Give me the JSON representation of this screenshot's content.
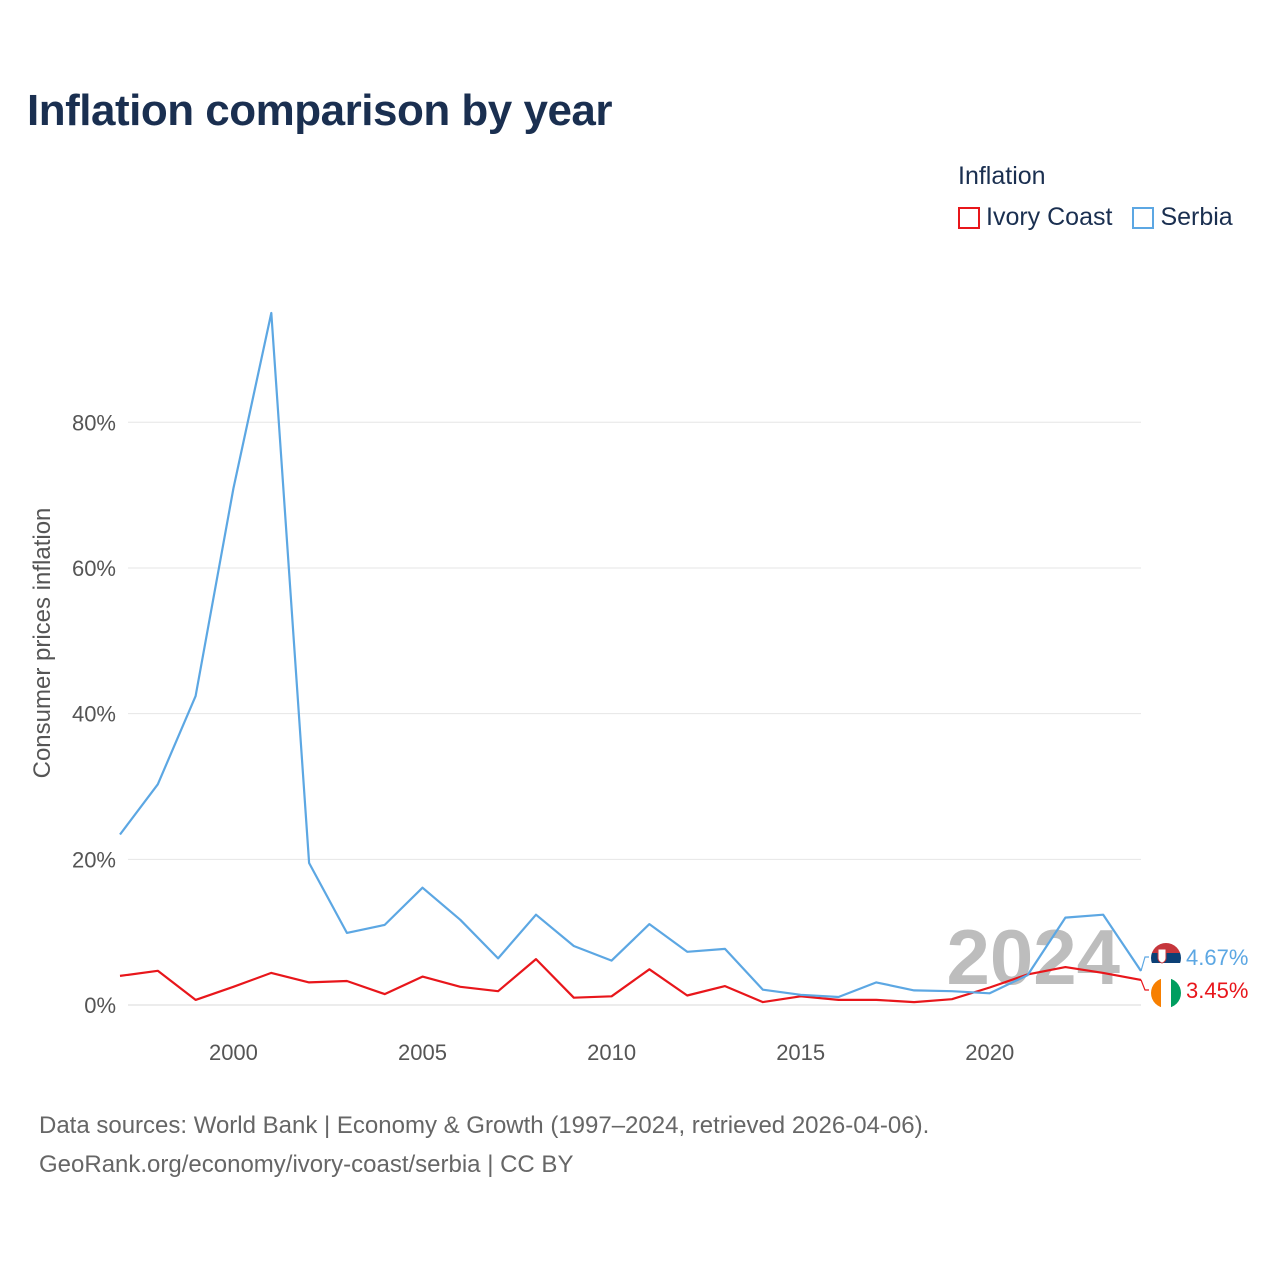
{
  "chart_data": {
    "type": "line",
    "title": "Inflation comparison by year",
    "ylabel": "Consumer prices inflation",
    "xlabel": "",
    "legend_title": "Inflation",
    "legend_position": "top-right",
    "x": [
      1997,
      1998,
      1999,
      2000,
      2001,
      2002,
      2003,
      2004,
      2005,
      2006,
      2007,
      2008,
      2009,
      2010,
      2011,
      2012,
      2013,
      2014,
      2015,
      2016,
      2017,
      2018,
      2019,
      2020,
      2021,
      2022,
      2023,
      2024
    ],
    "xlim": [
      1997,
      2024
    ],
    "ylim": [
      0,
      95
    ],
    "x_ticks": [
      2000,
      2005,
      2010,
      2015,
      2020
    ],
    "x_tick_labels": [
      "2000",
      "2005",
      "2010",
      "2015",
      "2020"
    ],
    "y_ticks": [
      0,
      20,
      40,
      60,
      80
    ],
    "y_tick_labels": [
      "0%",
      "20%",
      "40%",
      "60%",
      "80%"
    ],
    "grid": true,
    "current_year_label": "2024",
    "series": [
      {
        "name": "Ivory Coast",
        "color": "#e8161b",
        "flag": "ivory-coast-flag",
        "end_label": "3.45%",
        "values": [
          4.0,
          4.7,
          0.7,
          2.5,
          4.4,
          3.1,
          3.3,
          1.5,
          3.9,
          2.5,
          1.9,
          6.3,
          1.0,
          1.2,
          4.9,
          1.3,
          2.6,
          0.4,
          1.2,
          0.7,
          0.7,
          0.4,
          0.8,
          2.4,
          4.2,
          5.2,
          4.4,
          3.45
        ]
      },
      {
        "name": "Serbia",
        "color": "#5ca7e3",
        "flag": "serbia-flag",
        "end_label": "4.67%",
        "values": [
          23.4,
          30.3,
          42.4,
          70.9,
          95.0,
          19.5,
          9.9,
          11.0,
          16.1,
          11.7,
          6.4,
          12.4,
          8.1,
          6.1,
          11.1,
          7.3,
          7.7,
          2.1,
          1.4,
          1.1,
          3.1,
          2.0,
          1.9,
          1.6,
          4.1,
          12.0,
          12.4,
          4.67
        ]
      }
    ]
  },
  "footer": {
    "sources_line": "Data sources: World Bank | Economy & Growth (1997–2024, retrieved 2026-04-06).",
    "credit_line": "GeoRank.org/economy/ivory-coast/serbia | CC BY"
  }
}
